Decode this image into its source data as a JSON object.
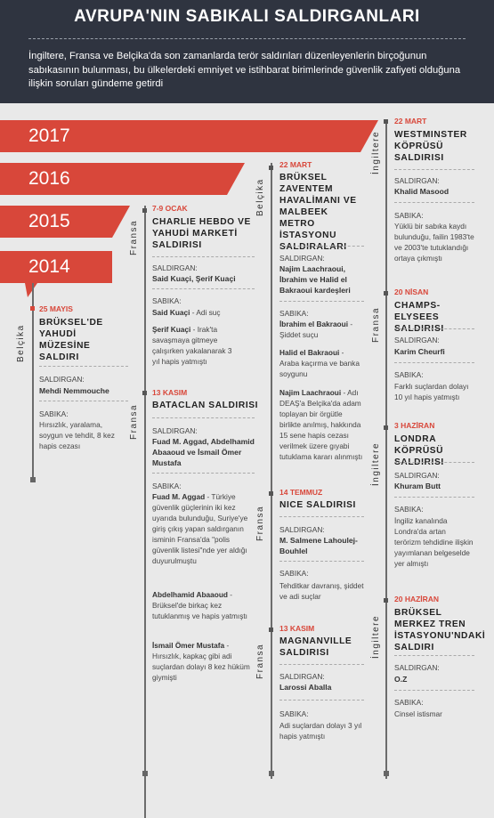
{
  "header": {
    "title": "AVRUPA'NIN SABIKALI SALDIRGANLARI",
    "subtitle": "İngiltere, Fransa ve Belçika'da son zamanlarda terör saldırıları düzenleyenlerin birçoğunun sabıkasının bulunması, bu ülkelerdeki emniyet ve istihbarat birimlerinde güvenlik zafiyeti olduğuna ilişkin soruları gündeme getirdi"
  },
  "colors": {
    "accent": "#d8473a",
    "header_bg": "#2f3440",
    "page_bg": "#e9e9e9"
  },
  "years": [
    "2017",
    "2016",
    "2015",
    "2014"
  ],
  "labels": {
    "attacker": "SALDIRGAN:",
    "record": "SABIKA:"
  },
  "countries": {
    "belgium": "Belçika",
    "france": "Fransa",
    "uk": "İngiltere"
  },
  "events": {
    "brussels_museum": {
      "date": "25 MAYIS",
      "title": "BRÜKSEL'DE YAHUDİ MÜZESİNE SALDIRI",
      "attacker": "Mehdi Nemmouche",
      "record": "Hırsızlık, yaralama, soygun ve tehdit, 8 kez hapis cezası"
    },
    "charlie": {
      "date": "7-9 OCAK",
      "title": "CHARLIE HEBDO VE YAHUDİ MARKETİ SALDIRISI",
      "attacker": "Said Kuaçi, Şerif Kuaçi",
      "record1_name": "Said Kuaçi",
      "record1_text": " - Adi suç",
      "record2_name": "Şerif Kuaçi",
      "record2_text": " - Irak'ta savaşmaya gitmeye çalışırken yakalanarak 3 yıl hapis yatmıştı"
    },
    "bataclan": {
      "date": "13 KASIM",
      "title": "BATACLAN SALDIRISI",
      "attacker": "Fuad M. Aggad, Abdelhamid Abaaoud ve İsmail Ömer Mustafa",
      "r1_name": "Fuad M. Aggad",
      "r1_text": " - Türkiye güvenlik güçlerinin iki kez uyarıda bulunduğu, Suriye'ye giriş çıkış yapan saldırganın isminin Fransa'da \"polis güvenlik listesi\"nde yer aldığı duyurulmuştu",
      "r2_name": "Abdelhamid Abaaoud",
      "r2_text": " - Brüksel'de birkaç kez tutuklanmış ve hapis yatmıştı",
      "r3_name": "İsmail Ömer Mustafa",
      "r3_text": " - Hırsızlık, kapkaç gibi adi suçlardan dolayı 8 kez hüküm giymişti"
    },
    "brussels_airport": {
      "date": "22 MART",
      "title": "BRÜKSEL ZAVENTEM HAVALİMANI VE MALBEEK METRO İSTASYONU SALDIRALARI",
      "attacker": "Najim Laachraoui, İbrahim ve Halid el Bakraoui kardeşleri",
      "r1_name": "İbrahim el Bakraoui",
      "r1_text": " - Şiddet suçu",
      "r2_name": "Halid el Bakraoui",
      "r2_text": " - Araba kaçırma ve banka soygunu",
      "r3_name": "Najim Laachraoui",
      "r3_text": " - Adı DEAŞ'a Belçika'da adam toplayan bir örgütle birlikte anılmış, hakkında 15 sene hapis cezası verilmek üzere gıyabi tutuklama kararı alınmıştı"
    },
    "nice": {
      "date": "14 TEMMUZ",
      "title": "NICE SALDIRISI",
      "attacker": "M. Salmene Lahoulej-Bouhlel",
      "record": "Tehditkar davranış, şiddet ve adi suçlar"
    },
    "magnanville": {
      "date": "13 KASIM",
      "title": "MAGNANVILLE SALDIRISI",
      "attacker": "Larossi Aballa",
      "record": "Adi suçlardan dolayı 3 yıl hapis yatmıştı"
    },
    "westminster": {
      "date": "22 MART",
      "title": "WESTMINSTER KÖPRÜSÜ SALDIRISI",
      "attacker": "Khalid Masood",
      "record": "Yüklü bir sabıka kaydı bulunduğu, failin 1983'te ve 2003'te tutuklandığı ortaya çıkmıştı"
    },
    "champs": {
      "date": "20 NİSAN",
      "title": "CHAMPS-ELYSEES SALDIRISI",
      "attacker": "Karim Cheurfi",
      "record": "Farklı suçlardan dolayı 10 yıl hapis yatmıştı"
    },
    "london_bridge": {
      "date": "3 HAZİRAN",
      "title": "LONDRA KÖPRÜSÜ SALDIRISI",
      "attacker": "Khuram Butt",
      "record": "İngiliz kanalında Londra'da artan terörizm tehdidine ilişkin yayımlanan belgeselde yer almıştı"
    },
    "brussels_station": {
      "date": "20 HAZİRAN",
      "title": "BRÜKSEL MERKEZ TREN İSTASYONU'NDAKİ SALDIRI",
      "attacker": "O.Z",
      "record": "Cinsel istismar"
    }
  }
}
